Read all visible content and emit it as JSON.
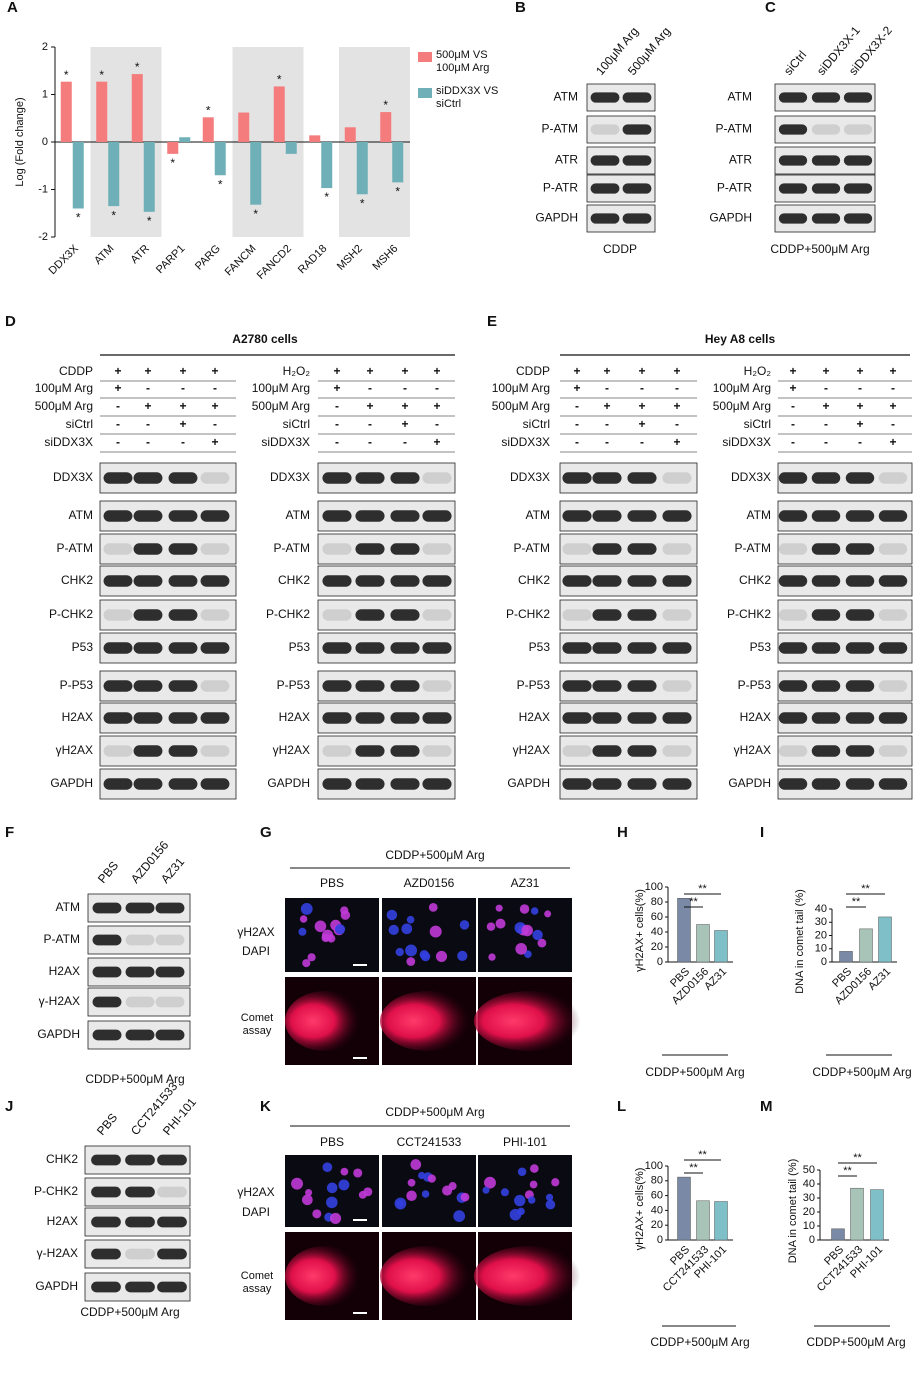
{
  "chart_data": [
    {
      "panel": "A",
      "type": "bar",
      "ylabel": "Log (Fold change)",
      "categories": [
        "DDX3X",
        "ATM",
        "ATR",
        "PARP1",
        "PARG",
        "FANCM",
        "FANCD2",
        "RAD18",
        "MSH2",
        "MSH6"
      ],
      "series": [
        {
          "name": "500μM VS 100μM Arg",
          "color": "#f47c7c",
          "values": [
            1.27,
            1.27,
            1.43,
            -0.25,
            0.52,
            0.62,
            1.17,
            0.14,
            0.31,
            0.63
          ],
          "significance": [
            "*",
            "*",
            "*",
            "*",
            "*",
            null,
            "*",
            null,
            null,
            "*"
          ]
        },
        {
          "name": "siDDX3X VS siCtrl",
          "color": "#6fb0b8",
          "values": [
            -1.4,
            -1.35,
            -1.47,
            0.1,
            -0.7,
            -1.32,
            -0.25,
            -0.97,
            -1.1,
            -0.85
          ],
          "significance": [
            "*",
            "*",
            "*",
            null,
            "*",
            "*",
            null,
            "*",
            "*",
            "*"
          ]
        }
      ],
      "ylim": [
        -2,
        2
      ],
      "yticks": [
        -2,
        -1,
        0,
        1,
        2
      ]
    },
    {
      "panel": "H",
      "type": "bar",
      "ylabel": "γH2AX+ cells(%)",
      "xlabel": "CDDP+500μM Arg",
      "categories": [
        "PBS",
        "AZD0156",
        "AZ31"
      ],
      "values": [
        85,
        50,
        42
      ],
      "colors": [
        "#7a8aa6",
        "#a8c4b8",
        "#7fbfc8"
      ],
      "ylim": [
        0,
        100
      ],
      "yticks": [
        0,
        20,
        40,
        60,
        80,
        100
      ],
      "significance": [
        {
          "from": "PBS",
          "to": "AZ31",
          "label": "**"
        },
        {
          "from": "PBS",
          "to": "AZD0156",
          "label": "**"
        }
      ]
    },
    {
      "panel": "I",
      "type": "bar",
      "ylabel": "DNA in comet tail (%)",
      "xlabel": "CDDP+500μM Arg",
      "categories": [
        "PBS",
        "AZD0156",
        "AZ31"
      ],
      "values": [
        8,
        25,
        34
      ],
      "colors": [
        "#7a8aa6",
        "#a8c4b8",
        "#7fbfc8"
      ],
      "ylim": [
        0,
        40
      ],
      "yticks": [
        0,
        10,
        20,
        30,
        40
      ],
      "significance": [
        {
          "from": "PBS",
          "to": "AZ31",
          "label": "**"
        },
        {
          "from": "PBS",
          "to": "AZD0156",
          "label": "**"
        }
      ]
    },
    {
      "panel": "L",
      "type": "bar",
      "ylabel": "γH2AX+ cells(%)",
      "xlabel": "CDDP+500μM Arg",
      "categories": [
        "PBS",
        "CCT241533",
        "PHI-101"
      ],
      "values": [
        85,
        53,
        52
      ],
      "colors": [
        "#7a8aa6",
        "#a8c4b8",
        "#7fbfc8"
      ],
      "ylim": [
        0,
        100
      ],
      "yticks": [
        0,
        20,
        40,
        60,
        80,
        100
      ],
      "significance": [
        {
          "from": "PBS",
          "to": "PHI-101",
          "label": "**"
        },
        {
          "from": "PBS",
          "to": "CCT241533",
          "label": "**"
        }
      ]
    },
    {
      "panel": "M",
      "type": "bar",
      "ylabel": "DNA in comet tail (%)",
      "xlabel": "CDDP+500μM Arg",
      "categories": [
        "PBS",
        "CCT241533",
        "PHI-101"
      ],
      "values": [
        8,
        37,
        36
      ],
      "colors": [
        "#7a8aa6",
        "#a8c4b8",
        "#7fbfc8"
      ],
      "ylim": [
        0,
        50
      ],
      "yticks": [
        0,
        10,
        20,
        30,
        40,
        50
      ],
      "significance": [
        {
          "from": "PBS",
          "to": "PHI-101",
          "label": "**"
        },
        {
          "from": "PBS",
          "to": "CCT241533",
          "label": "**"
        }
      ]
    }
  ],
  "blots": [
    {
      "panel": "B",
      "columns": [
        "100μM Arg",
        "500μM Arg"
      ],
      "rows": [
        "ATM",
        "P-ATM",
        "ATR",
        "P-ATR",
        "GAPDH"
      ],
      "caption": "CDDP"
    },
    {
      "panel": "C",
      "columns": [
        "siCtrl",
        "siDDX3X-1",
        "siDDX3X-2"
      ],
      "rows": [
        "ATM",
        "P-ATM",
        "ATR",
        "P-ATR",
        "GAPDH"
      ],
      "caption": "CDDP+500μM Arg"
    },
    {
      "panel": "F",
      "columns": [
        "PBS",
        "AZD0156",
        "AZ31"
      ],
      "rows": [
        "ATM",
        "P-ATM",
        "H2AX",
        "γ-H2AX",
        "GAPDH"
      ],
      "caption": "CDDP+500μM Arg"
    },
    {
      "panel": "J",
      "columns": [
        "PBS",
        "CCT241533",
        "PHI-101"
      ],
      "rows": [
        "CHK2",
        "P-CHK2",
        "H2AX",
        "γ-H2AX",
        "GAPDH"
      ],
      "caption": "CDDP+500μM Arg"
    }
  ],
  "blot_groups": [
    {
      "panel": "D",
      "title": "A2780 cells",
      "blots": [
        {
          "treatments": [
            {
              "name": "CDDP",
              "signs": [
                "+",
                "+",
                "+",
                "+"
              ]
            },
            {
              "name": "100μM Arg",
              "signs": [
                "+",
                "-",
                "-",
                "-"
              ]
            },
            {
              "name": "500μM Arg",
              "signs": [
                "-",
                "+",
                "+",
                "+"
              ]
            },
            {
              "name": "siCtrl",
              "signs": [
                "-",
                "-",
                "+",
                "-"
              ]
            },
            {
              "name": "siDDX3X",
              "signs": [
                "-",
                "-",
                "-",
                "+"
              ]
            }
          ],
          "rows": [
            "DDX3X",
            "ATM",
            "P-ATM",
            "CHK2",
            "P-CHK2",
            "P53",
            "P-P53",
            "H2AX",
            "γH2AX",
            "GAPDH"
          ]
        },
        {
          "treatments": [
            {
              "name": "H₂O₂",
              "signs": [
                "+",
                "+",
                "+",
                "+"
              ]
            },
            {
              "name": "100μM Arg",
              "signs": [
                "+",
                "-",
                "-",
                "-"
              ]
            },
            {
              "name": "500μM Arg",
              "signs": [
                "-",
                "+",
                "+",
                "+"
              ]
            },
            {
              "name": "siCtrl",
              "signs": [
                "-",
                "-",
                "+",
                "-"
              ]
            },
            {
              "name": "siDDX3X",
              "signs": [
                "-",
                "-",
                "-",
                "+"
              ]
            }
          ],
          "rows": [
            "DDX3X",
            "ATM",
            "P-ATM",
            "CHK2",
            "P-CHK2",
            "P53",
            "P-P53",
            "H2AX",
            "γH2AX",
            "GAPDH"
          ]
        }
      ]
    },
    {
      "panel": "E",
      "title": "Hey A8 cells",
      "blots": [
        {
          "treatments": [
            {
              "name": "CDDP",
              "signs": [
                "+",
                "+",
                "+",
                "+"
              ]
            },
            {
              "name": "100μM Arg",
              "signs": [
                "+",
                "-",
                "-",
                "-"
              ]
            },
            {
              "name": "500μM Arg",
              "signs": [
                "-",
                "+",
                "+",
                "+"
              ]
            },
            {
              "name": "siCtrl",
              "signs": [
                "-",
                "-",
                "+",
                "-"
              ]
            },
            {
              "name": "siDDX3X",
              "signs": [
                "-",
                "-",
                "-",
                "+"
              ]
            }
          ],
          "rows": [
            "DDX3X",
            "ATM",
            "P-ATM",
            "CHK2",
            "P-CHK2",
            "P53",
            "P-P53",
            "H2AX",
            "γH2AX",
            "GAPDH"
          ]
        },
        {
          "treatments": [
            {
              "name": "H₂O₂",
              "signs": [
                "+",
                "+",
                "+",
                "+"
              ]
            },
            {
              "name": "100μM Arg",
              "signs": [
                "+",
                "-",
                "-",
                "-"
              ]
            },
            {
              "name": "500μM Arg",
              "signs": [
                "-",
                "+",
                "+",
                "+"
              ]
            },
            {
              "name": "siCtrl",
              "signs": [
                "-",
                "-",
                "+",
                "-"
              ]
            },
            {
              "name": "siDDX3X",
              "signs": [
                "-",
                "-",
                "-",
                "+"
              ]
            }
          ],
          "rows": [
            "DDX3X",
            "ATM",
            "P-ATM",
            "CHK2",
            "P-CHK2",
            "P53",
            "P-P53",
            "H2AX",
            "γH2AX",
            "GAPDH"
          ]
        }
      ]
    }
  ],
  "images": [
    {
      "panel": "G",
      "title": "CDDP+500μM Arg",
      "columns": [
        "PBS",
        "AZD0156",
        "AZ31"
      ],
      "stains": [
        "γH2AX",
        "DAPI"
      ],
      "assay": "Comet assay"
    },
    {
      "panel": "K",
      "title": "CDDP+500μM Arg",
      "columns": [
        "PBS",
        "CCT241533",
        "PHI-101"
      ],
      "stains": [
        "γH2AX",
        "DAPI"
      ],
      "assay": "Comet assay"
    }
  ]
}
